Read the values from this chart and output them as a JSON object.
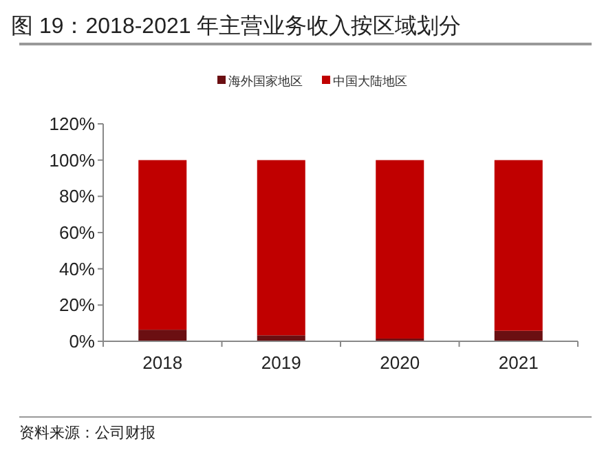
{
  "chart_data": {
    "type": "bar",
    "title": "图 19：2018-2021 年主营业务收入按区域划分",
    "categories": [
      "2018",
      "2019",
      "2020",
      "2021"
    ],
    "stacked": true,
    "series": [
      {
        "name": "海外国家地区",
        "color": "#6b0f12",
        "values": [
          6.4,
          3.3,
          1.5,
          5.8
        ]
      },
      {
        "name": "中国大陆地区",
        "color": "#c00000",
        "values": [
          93.6,
          96.7,
          98.5,
          94.2
        ]
      }
    ],
    "ylim": [
      0,
      120
    ],
    "yticks": [
      {
        "value": 0,
        "label": "0%"
      },
      {
        "value": 20,
        "label": "20%"
      },
      {
        "value": 40,
        "label": "40%"
      },
      {
        "value": 60,
        "label": "60%"
      },
      {
        "value": 80,
        "label": "80%"
      },
      {
        "value": 100,
        "label": "100%"
      },
      {
        "value": 120,
        "label": "120%"
      }
    ],
    "legend": "top",
    "grid": false,
    "annotations": [
      "资料来源：公司财报"
    ]
  }
}
